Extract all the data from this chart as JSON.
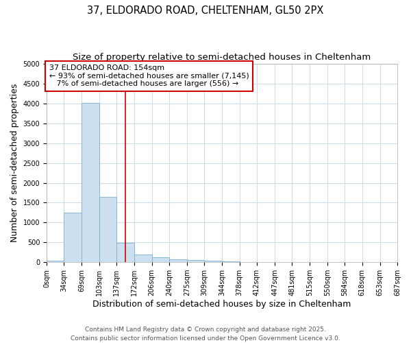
{
  "title_line1": "37, ELDORADO ROAD, CHELTENHAM, GL50 2PX",
  "title_line2": "Size of property relative to semi-detached houses in Cheltenham",
  "xlabel": "Distribution of semi-detached houses by size in Cheltenham",
  "ylabel": "Number of semi-detached properties",
  "bar_edges": [
    0,
    34,
    69,
    103,
    137,
    172,
    206,
    240,
    275,
    309,
    344,
    378,
    412,
    447,
    481,
    515,
    550,
    584,
    618,
    653,
    687
  ],
  "bar_heights": [
    30,
    1250,
    4020,
    1640,
    480,
    200,
    120,
    65,
    50,
    35,
    25,
    0,
    0,
    0,
    0,
    0,
    0,
    0,
    0,
    0
  ],
  "bar_color": "#cce0f0",
  "bar_edge_color": "#7fb0d0",
  "property_size": 154,
  "property_line_color": "#cc0000",
  "annotation_text": "37 ELDORADO ROAD: 154sqm\n← 93% of semi-detached houses are smaller (7,145)\n   7% of semi-detached houses are larger (556) →",
  "annotation_box_facecolor": "#ffffff",
  "annotation_border_color": "#cc0000",
  "ylim": [
    0,
    5000
  ],
  "yticks": [
    0,
    500,
    1000,
    1500,
    2000,
    2500,
    3000,
    3500,
    4000,
    4500,
    5000
  ],
  "background_color": "#ffffff",
  "grid_color": "#d0dce8",
  "footer_text": "Contains HM Land Registry data © Crown copyright and database right 2025.\nContains public sector information licensed under the Open Government Licence v3.0.",
  "title_fontsize": 10.5,
  "subtitle_fontsize": 9.5,
  "tick_label_fontsize": 7,
  "axis_label_fontsize": 9,
  "annotation_fontsize": 8,
  "footer_fontsize": 6.5
}
